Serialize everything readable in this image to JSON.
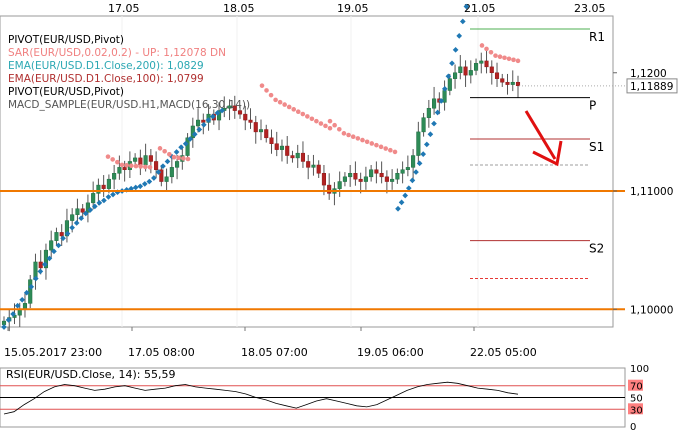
{
  "chart_data": {
    "type": "candlestick",
    "symbol": "EUR/USD",
    "top_dates": [
      "17.05",
      "18.05",
      "19.05",
      "21.05",
      "23.05"
    ],
    "bottom_time_labels": [
      "15.05.2017 23:00",
      "17.05 08:00",
      "18.05 07:00",
      "19.05 06:00",
      "22.05 05:00"
    ],
    "indicator_legend": [
      {
        "text": "PIVOT(EUR/USD,Pivot)",
        "color": "#000000"
      },
      {
        "text": "SAR(EUR/USD,0.02,0.2) -  UP: 1,12078  DN",
        "color": "#f08080"
      },
      {
        "text": "EMA(EUR/USD.D1.Close,200): 1,0829",
        "color": "#2ca8b3"
      },
      {
        "text": "EMA(EUR/USD.D1.Close,100): 1,0799",
        "color": "#b03030"
      },
      {
        "text": "PIVOT(EUR/USD,Pivot)",
        "color": "#000000"
      },
      {
        "text": "MACD_SAMPLE(EUR/USD.H1,MACD(16,30,14))",
        "color": "#555555"
      }
    ],
    "price_axis": {
      "min": 1.0985,
      "max": 1.1248,
      "labels": [
        {
          "value": 1.12,
          "text": "1,1200"
        },
        {
          "value": 1.1,
          "text": "1,10000",
          "highlight": true
        },
        {
          "value": 1.11,
          "text": "1,11000",
          "highlight": true
        }
      ],
      "current_price": {
        "value": 1.11889,
        "text": "1,11889"
      }
    },
    "horizontal_levels": [
      {
        "value": 1.11,
        "color": "#f07800",
        "role": "support-resistance"
      },
      {
        "value": 1.1,
        "color": "#f07800",
        "role": "support-resistance"
      }
    ],
    "pivot_levels": [
      {
        "label": "R1",
        "value": 1.1237,
        "color": "#4caf50"
      },
      {
        "label": "P",
        "value": 1.1179,
        "color": "#000000"
      },
      {
        "label": "S1",
        "value": 1.1144,
        "color": "#b03030"
      },
      {
        "label": "S2",
        "value": 1.1058,
        "color": "#b03030"
      }
    ],
    "dashed_levels": [
      {
        "value": 1.1122,
        "color": "#9e9e9e"
      },
      {
        "value": 1.1026,
        "color": "#e53935"
      }
    ],
    "sar_up_values": [
      1.0985,
      1.0991,
      1.0996,
      1.1003,
      1.1008,
      1.1014,
      1.1019,
      1.1026,
      1.1032,
      1.1038,
      1.1043,
      1.1049,
      1.1054,
      1.106,
      1.1064,
      1.1069,
      1.1073,
      1.1077,
      1.1081,
      1.1084,
      1.1087,
      1.109,
      1.1092,
      1.1095,
      1.1097,
      1.1099,
      1.11,
      1.1101,
      1.1102,
      1.1103,
      1.1104,
      1.1106,
      1.1108,
      1.1111,
      1.1116,
      1.1121,
      1.1125,
      1.1129,
      1.1133,
      1.1137,
      1.114,
      1.1144,
      1.1148,
      1.1152,
      1.1156,
      1.116,
      1.1163,
      1.1166,
      1.1168
    ],
    "rsi": {
      "label": "RSI(EUR/USD.Close, 14): 55,59",
      "axis_labels": [
        "100",
        "70",
        "50",
        "30",
        "0"
      ],
      "levels": [
        70,
        50,
        30
      ],
      "values": [
        22,
        26,
        38,
        48,
        60,
        68,
        72,
        70,
        66,
        62,
        64,
        68,
        70,
        66,
        62,
        64,
        66,
        70,
        72,
        68,
        66,
        64,
        62,
        60,
        56,
        50,
        46,
        40,
        36,
        32,
        38,
        44,
        48,
        44,
        40,
        36,
        34,
        38,
        46,
        54,
        62,
        68,
        72,
        74,
        76,
        74,
        70,
        66,
        64,
        62,
        58,
        55.59
      ]
    },
    "annotation": "red arrow pointing down toward S1"
  }
}
